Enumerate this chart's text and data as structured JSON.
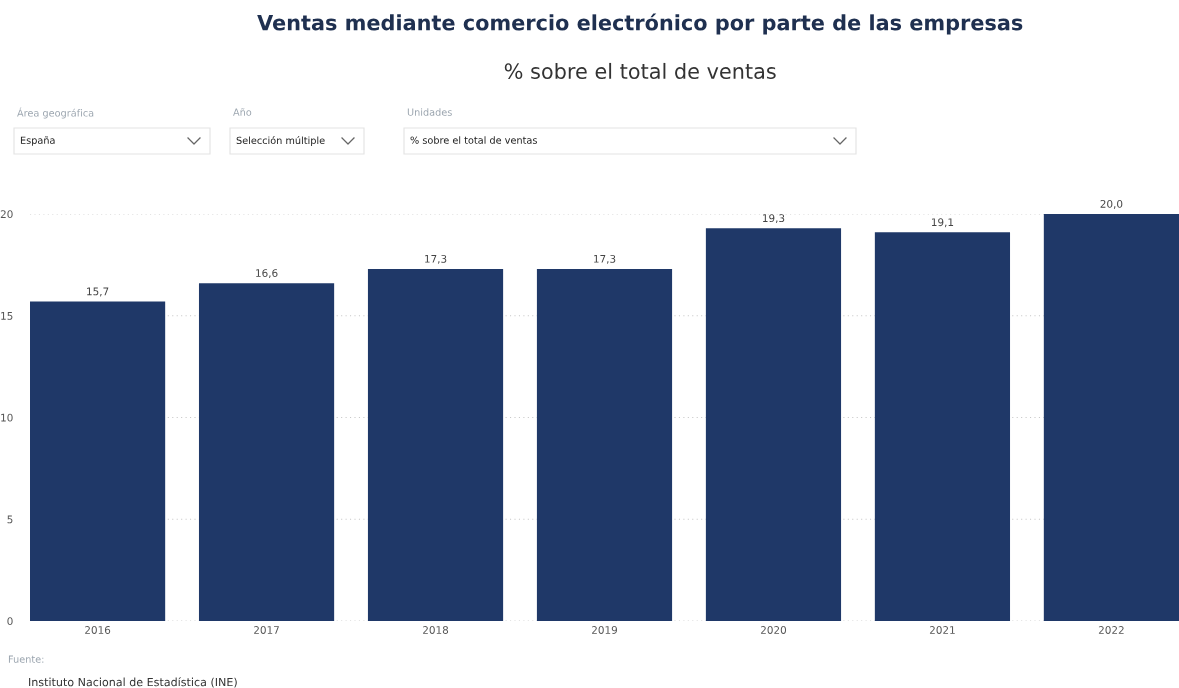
{
  "chart_data": {
    "type": "bar",
    "title": "Ventas mediante comercio electrónico por parte de las empresas",
    "subtitle": "% sobre el total de ventas",
    "categories": [
      "2016",
      "2017",
      "2018",
      "2019",
      "2020",
      "2021",
      "2022"
    ],
    "values": [
      15.7,
      16.6,
      17.3,
      17.3,
      19.3,
      19.1,
      20.0
    ],
    "value_labels": [
      "15,7",
      "16,6",
      "17,3",
      "17,3",
      "19,3",
      "19,1",
      "20,0"
    ],
    "color": "#1f3868",
    "ylim": [
      0,
      20
    ],
    "yticks": [
      0,
      5,
      10,
      15,
      20
    ],
    "grid": "y",
    "annotations": [
      "Área geográfica",
      "España",
      "Año",
      "Selección múltiple",
      "Unidades",
      "% sobre el total de ventas",
      "Fuente:",
      "Instituto Nacional de Estadística (INE)"
    ]
  }
}
